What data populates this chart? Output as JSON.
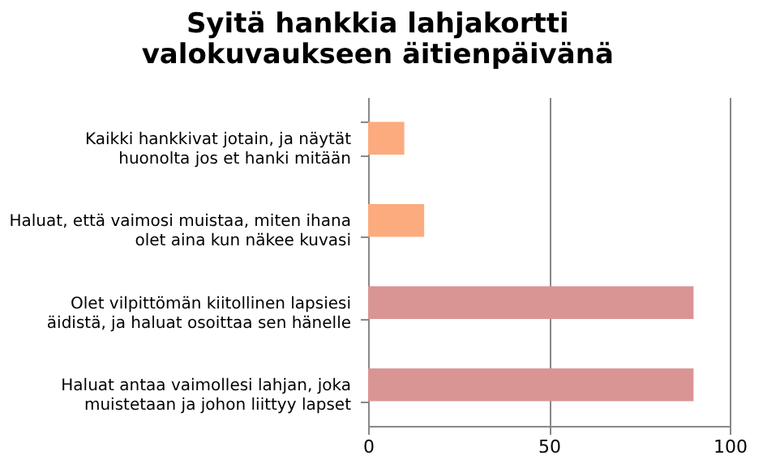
{
  "chart_data": {
    "type": "bar",
    "orientation": "horizontal",
    "title": "Syitä hankkia lahjakortti valokuvaukseen äitienpäivänä",
    "categories": [
      "Kaikki hankkivat jotain, ja näytät huonolta jos et hanki mitään",
      "Haluat, että vaimosi muistaa, miten ihana olet aina kun näkee kuvasi",
      "Olet vilpittömän kiitollinen lapsiesi äidistä, ja haluat osoittaa sen hänelle",
      "Haluat antaa vaimollesi lahjan, joka muistetaan ja johon liittyy lapset"
    ],
    "values": [
      10,
      15.5,
      90,
      90
    ],
    "colors": [
      "#fcab7e",
      "#fcab7e",
      "#d99594",
      "#d99594"
    ],
    "xlim": [
      0,
      100
    ],
    "xticks": [
      0,
      50,
      100
    ],
    "grid": "x"
  }
}
